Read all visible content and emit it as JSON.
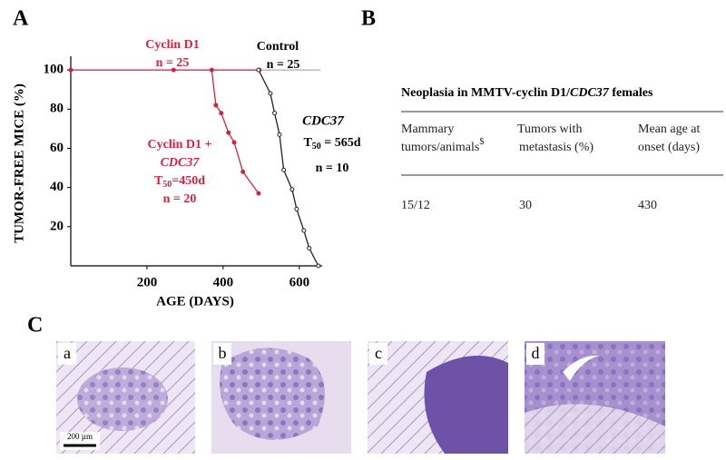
{
  "panel_labels": [
    "A",
    "B",
    "C"
  ],
  "chart_data": {
    "type": "line",
    "y_label": "TUMOR-FREE MICE (%)",
    "x_label": "AGE (DAYS)",
    "xlim": [
      0,
      660
    ],
    "xticks": [
      200,
      400,
      600
    ],
    "ylim": [
      0,
      107
    ],
    "yticks": [
      20,
      40,
      60,
      80,
      100
    ],
    "series": [
      {
        "name": "Control",
        "color": "#999999",
        "x": [
          0,
          655
        ],
        "values": [
          100,
          100
        ]
      },
      {
        "name": "Cyclin D1",
        "color": "#d0243f",
        "x": [
          0,
          270,
          495
        ],
        "values": [
          100,
          100,
          100
        ]
      },
      {
        "name": "Cyclin D1 +",
        "color": "#d0243f",
        "x": [
          370,
          381,
          395,
          414,
          429,
          452,
          493
        ],
        "values": [
          100,
          82,
          78,
          68,
          63,
          48,
          37
        ]
      },
      {
        "name": "CDC37",
        "color": "#222222",
        "x": [
          493,
          524,
          535,
          548,
          559,
          581,
          593,
          612,
          626,
          650
        ],
        "values": [
          100,
          88,
          78,
          67,
          49,
          39,
          29,
          18,
          9,
          0
        ]
      }
    ],
    "annotations": [
      "n = 25",
      "n = 25",
      "CDC37",
      "T",
      "50",
      "=450d",
      "n = 20",
      "T",
      "50",
      " = 565d",
      "n = 10"
    ]
  },
  "table": {
    "title": [
      "Neoplasia in MMTV-cyclin D1/",
      "CDC37",
      " females"
    ],
    "columns": [
      [
        "Mammary",
        "tumors/animals",
        "$"
      ],
      [
        "Tumors with",
        "metastasis (%)"
      ],
      [
        "Mean age at",
        "onset (days)"
      ]
    ],
    "rows": [
      [
        "15/12",
        "30",
        "430"
      ]
    ]
  },
  "images": {
    "labels": [
      "a",
      "b",
      "c",
      "d"
    ],
    "scale_bar": "200 µm"
  }
}
